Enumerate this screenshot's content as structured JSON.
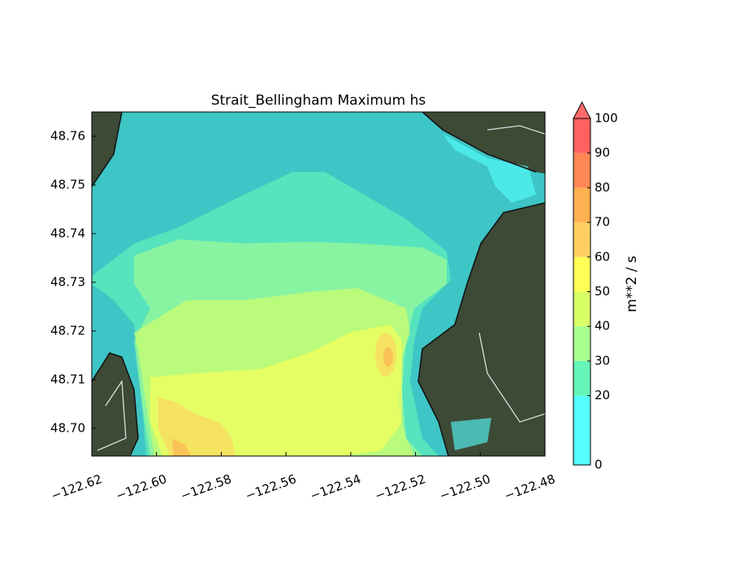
{
  "chart_data": {
    "type": "contourf",
    "title": "Strait_Bellingham Maximum hs",
    "xlim": [
      -122.62,
      -122.48
    ],
    "xticks": [
      {
        "value": -122.62,
        "label": "−122.62"
      },
      {
        "value": -122.6,
        "label": "−122.60"
      },
      {
        "value": -122.58,
        "label": "−122.58"
      },
      {
        "value": -122.56,
        "label": "−122.56"
      },
      {
        "value": -122.54,
        "label": "−122.54"
      },
      {
        "value": -122.52,
        "label": "−122.52"
      },
      {
        "value": -122.5,
        "label": "−122.50"
      },
      {
        "value": -122.48,
        "label": "−122.48"
      }
    ],
    "ylim": [
      48.6943,
      48.765
    ],
    "yticks": [
      {
        "value": 48.7,
        "label": "48.70"
      },
      48.71,
      48.72,
      48.73,
      48.74,
      48.75,
      48.76
    ],
    "colorbar": {
      "label": "m**2 / s",
      "levels": [
        0,
        20,
        30,
        40,
        50,
        60,
        70,
        80,
        90,
        100
      ],
      "colors": [
        "#55ffff",
        "#66f5b8",
        "#a8ff90",
        "#d8ff66",
        "#ffff55",
        "#ffd060",
        "#ffb050",
        "#ff8855",
        "#ff6060"
      ],
      "extend": "max",
      "extend_color": "#ff6a6a"
    }
  }
}
